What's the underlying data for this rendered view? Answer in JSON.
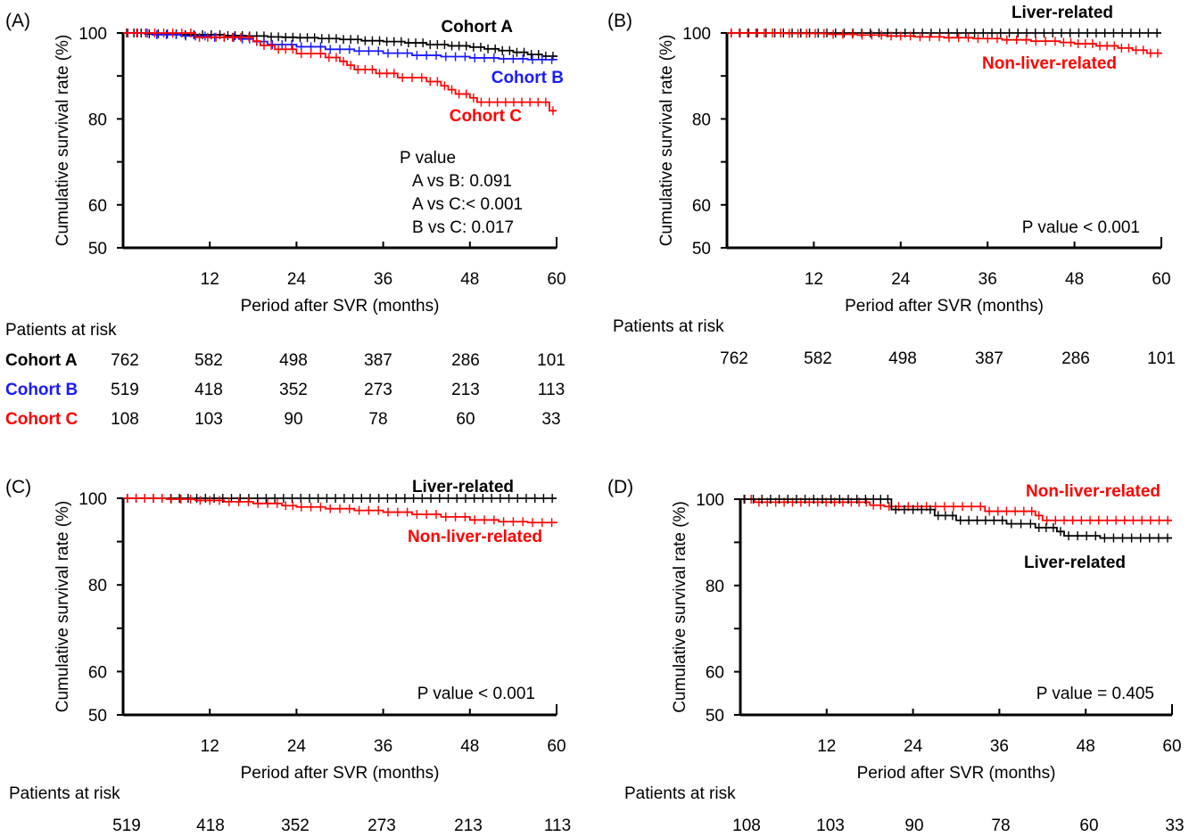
{
  "colors": {
    "black": "#000000",
    "blue": "#1a1aff",
    "red": "#ff0000"
  },
  "chart_data": [
    {
      "panel_label": "(A)",
      "type": "line",
      "subtype": "kaplan-meier",
      "title": "",
      "xlabel": "Period after SVR (months)",
      "ylabel": "Cumulative survival rate (%)",
      "xlim": [
        0,
        60
      ],
      "ylim": [
        50,
        100
      ],
      "xticks": [
        "12",
        "24",
        "36",
        "48",
        "60"
      ],
      "yticks": [
        "50",
        "60",
        "80",
        "100"
      ],
      "series": [
        {
          "name": "Cohort A",
          "color": "#000000",
          "bold_label": true,
          "x": [
            0,
            3,
            8,
            14,
            17,
            20,
            22,
            24,
            27,
            30,
            33,
            36,
            39,
            42,
            45,
            48,
            50,
            52,
            54,
            56,
            58,
            60
          ],
          "y": [
            100,
            99.8,
            99.6,
            99.4,
            99.3,
            99.1,
            99,
            98.9,
            98.7,
            98.5,
            98.2,
            98,
            97.7,
            97.3,
            97,
            96.7,
            96.3,
            95.9,
            95.5,
            95,
            94.6,
            94.4
          ]
        },
        {
          "name": "Cohort B",
          "color": "#1a1aff",
          "bold_label": true,
          "x": [
            0,
            4,
            8,
            12,
            16,
            18,
            20,
            24,
            28,
            32,
            36,
            40,
            44,
            48,
            52,
            56,
            60
          ],
          "y": [
            100,
            99.6,
            99.3,
            99,
            98.6,
            98,
            97.3,
            96.8,
            96.2,
            95.8,
            95.3,
            94.8,
            94.5,
            94.2,
            94,
            93.8,
            93.7
          ]
        },
        {
          "name": "Cohort C",
          "color": "#ff0000",
          "bold_label": true,
          "x": [
            0,
            10,
            18,
            19,
            21,
            24,
            28,
            30,
            31,
            32,
            35,
            38,
            42,
            44,
            45,
            46,
            48,
            49,
            58,
            59,
            60
          ],
          "y": [
            100,
            99,
            98.1,
            97.1,
            96.2,
            95.2,
            94.3,
            93.4,
            92.5,
            91.5,
            90.6,
            89.6,
            88.7,
            87.7,
            86.8,
            85.8,
            84.9,
            83.9,
            83.9,
            81.9,
            81.9
          ]
        }
      ],
      "annotations": [
        "P value",
        "A vs B: 0.091",
        "A vs C:< 0.001",
        "B vs C: 0.017"
      ],
      "risk_table": {
        "header": "Patients at risk",
        "rows": [
          {
            "label": "Cohort A",
            "color": "#000000",
            "values": [
              "762",
              "582",
              "498",
              "387",
              "286",
              "101"
            ]
          },
          {
            "label": "Cohort B",
            "color": "#1a1aff",
            "values": [
              "519",
              "418",
              "352",
              "273",
              "213",
              "113"
            ]
          },
          {
            "label": "Cohort C",
            "color": "#ff0000",
            "values": [
              "108",
              "103",
              "90",
              "78",
              "60",
              "33"
            ]
          }
        ]
      }
    },
    {
      "panel_label": "(B)",
      "type": "line",
      "subtype": "kaplan-meier",
      "title": "",
      "xlabel": "Period after SVR (months)",
      "ylabel": "Cumulative survival rate (%)",
      "xlim": [
        0,
        60
      ],
      "ylim": [
        50,
        100
      ],
      "xticks": [
        "12",
        "24",
        "36",
        "48",
        "60"
      ],
      "yticks": [
        "50",
        "60",
        "80",
        "100"
      ],
      "series": [
        {
          "name": "Liver-related",
          "color": "#000000",
          "bold_label": true,
          "x": [
            0,
            60
          ],
          "y": [
            100,
            100
          ]
        },
        {
          "name": "Non-liver-related",
          "color": "#ff0000",
          "bold_label": true,
          "x": [
            0,
            8,
            14,
            18,
            22,
            26,
            30,
            34,
            38,
            42,
            46,
            48,
            51,
            54,
            56,
            58,
            60
          ],
          "y": [
            100,
            99.9,
            99.7,
            99.5,
            99.3,
            99.1,
            98.9,
            98.7,
            98.4,
            98.1,
            97.8,
            97.5,
            97,
            96.5,
            96,
            95.3,
            95.1
          ]
        }
      ],
      "annotations": [
        "P value < 0.001"
      ],
      "risk_table": {
        "header": "Patients at risk",
        "rows": [
          {
            "label": "",
            "color": "#000000",
            "values": [
              "762",
              "582",
              "498",
              "387",
              "286",
              "101"
            ]
          }
        ]
      }
    },
    {
      "panel_label": "(C)",
      "type": "line",
      "subtype": "kaplan-meier",
      "title": "",
      "xlabel": "Period after SVR (months)",
      "ylabel": "Cumulative survival rate (%)",
      "xlim": [
        0,
        60
      ],
      "ylim": [
        50,
        100
      ],
      "xticks": [
        "12",
        "24",
        "36",
        "48",
        "60"
      ],
      "yticks": [
        "50",
        "60",
        "80",
        "100"
      ],
      "series": [
        {
          "name": "Liver-related",
          "color": "#000000",
          "bold_label": true,
          "x": [
            0,
            60
          ],
          "y": [
            100,
            100
          ]
        },
        {
          "name": "Non-liver-related",
          "color": "#ff0000",
          "bold_label": true,
          "x": [
            0,
            6,
            10,
            14,
            18,
            22,
            24,
            28,
            32,
            36,
            40,
            44,
            48,
            52,
            56,
            60
          ],
          "y": [
            100,
            99.8,
            99.5,
            99.2,
            98.8,
            98.3,
            98,
            97.6,
            97.2,
            96.8,
            96.3,
            95.7,
            95,
            94.6,
            94.4,
            94.3
          ]
        }
      ],
      "annotations": [
        "P value < 0.001"
      ],
      "risk_table": {
        "header": "Patients at risk",
        "rows": [
          {
            "label": "",
            "color": "#000000",
            "values": [
              "519",
              "418",
              "352",
              "273",
              "213",
              "113"
            ]
          }
        ]
      }
    },
    {
      "panel_label": "(D)",
      "type": "line",
      "subtype": "kaplan-meier",
      "title": "",
      "xlabel": "Period after SVR (months)",
      "ylabel": "Cumulative survival rate (%)",
      "xlim": [
        0,
        60
      ],
      "ylim": [
        50,
        100
      ],
      "xticks": [
        "12",
        "24",
        "36",
        "48",
        "60"
      ],
      "yticks": [
        "50",
        "60",
        "80",
        "100"
      ],
      "series": [
        {
          "name": "Non-liver-related",
          "color": "#ff0000",
          "bold_label": true,
          "x": [
            0,
            2,
            16,
            18,
            20,
            24,
            34,
            40,
            41,
            42,
            60
          ],
          "y": [
            100,
            99.3,
            99.3,
            98.6,
            98.3,
            98.3,
            97.2,
            97.2,
            96.2,
            95.1,
            95.1
          ]
        },
        {
          "name": "Liver-related",
          "color": "#000000",
          "bold_label": true,
          "x": [
            0,
            18,
            21,
            27,
            30,
            37,
            41,
            44,
            45,
            50,
            60
          ],
          "y": [
            100,
            100,
            97.6,
            96.2,
            95.1,
            94.3,
            93.4,
            92.5,
            91.5,
            91,
            91
          ]
        }
      ],
      "annotations": [
        "P value = 0.405"
      ],
      "risk_table": {
        "header": "Patients at risk",
        "rows": [
          {
            "label": "",
            "color": "#000000",
            "values": [
              "108",
              "103",
              "90",
              "78",
              "60",
              "33"
            ]
          }
        ]
      }
    }
  ]
}
